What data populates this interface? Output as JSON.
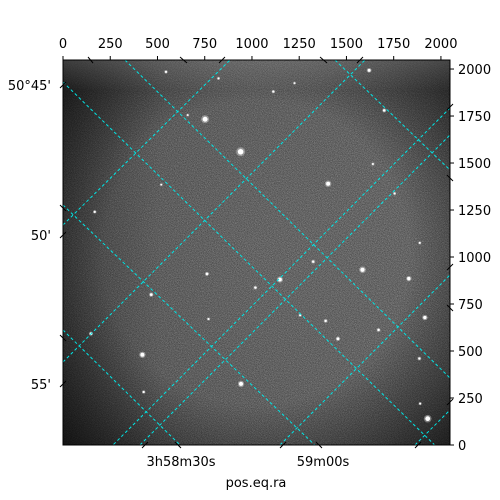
{
  "chart_data": {
    "type": "image",
    "title": "",
    "xlabel": "pos.eq.ra",
    "ylabel": "",
    "pixel_axes": {
      "x": {
        "range": [
          0,
          2048
        ],
        "ticks": [
          0,
          250,
          500,
          750,
          1000,
          1250,
          1500,
          1750,
          2000
        ],
        "tick_labels": [
          "0",
          "250",
          "500",
          "750",
          "1000",
          "1250",
          "1500",
          "1750",
          "2000"
        ],
        "position": "top"
      },
      "y": {
        "range": [
          0,
          2048
        ],
        "ticks": [
          0,
          250,
          500,
          750,
          1000,
          1250,
          1500,
          1750,
          2000
        ],
        "tick_labels": [
          "0",
          "250",
          "500",
          "750",
          "1000",
          "1250",
          "1500",
          "1750",
          "2000"
        ],
        "position": "right"
      }
    },
    "world_axes": {
      "ra": {
        "name": "pos.eq.ra",
        "tick_labels": [
          "3h58m30s",
          "59m00s"
        ],
        "position": "bottom"
      },
      "dec": {
        "tick_labels": [
          "50°45'",
          "50'",
          "55'"
        ],
        "position": "left"
      }
    },
    "grid": true,
    "grid_color": "#00e5e5",
    "image": {
      "colormap": "gray",
      "background_level": 0.38,
      "vignette": "dark corners with brighter central plate region",
      "stars": [
        {
          "x": 752,
          "y": 1733,
          "size": 2.5
        },
        {
          "x": 940,
          "y": 1560,
          "size": 2.8
        },
        {
          "x": 1403,
          "y": 1390,
          "size": 2.0
        },
        {
          "x": 1585,
          "y": 932,
          "size": 2.1
        },
        {
          "x": 1148,
          "y": 880,
          "size": 1.9
        },
        {
          "x": 1830,
          "y": 885,
          "size": 1.7
        },
        {
          "x": 1915,
          "y": 678,
          "size": 1.7
        },
        {
          "x": 420,
          "y": 480,
          "size": 2.0
        },
        {
          "x": 942,
          "y": 325,
          "size": 2.0
        },
        {
          "x": 1930,
          "y": 140,
          "size": 2.4
        },
        {
          "x": 1620,
          "y": 1993,
          "size": 1.5
        },
        {
          "x": 1700,
          "y": 1780,
          "size": 1.3
        },
        {
          "x": 1455,
          "y": 565,
          "size": 1.4
        },
        {
          "x": 1390,
          "y": 660,
          "size": 1.2
        },
        {
          "x": 762,
          "y": 910,
          "size": 1.3
        },
        {
          "x": 1018,
          "y": 837,
          "size": 1.2
        },
        {
          "x": 1324,
          "y": 975,
          "size": 1.2
        },
        {
          "x": 467,
          "y": 800,
          "size": 1.4
        },
        {
          "x": 148,
          "y": 592,
          "size": 1.3
        },
        {
          "x": 168,
          "y": 1240,
          "size": 1.1
        },
        {
          "x": 545,
          "y": 1985,
          "size": 1.1
        },
        {
          "x": 823,
          "y": 1950,
          "size": 1.0
        },
        {
          "x": 1113,
          "y": 1880,
          "size": 1.1
        },
        {
          "x": 1886,
          "y": 460,
          "size": 1.2
        },
        {
          "x": 427,
          "y": 282,
          "size": 1.1
        },
        {
          "x": 1670,
          "y": 612,
          "size": 1.2
        },
        {
          "x": 1640,
          "y": 1495,
          "size": 1.0
        },
        {
          "x": 1755,
          "y": 1338,
          "size": 1.0
        },
        {
          "x": 1225,
          "y": 1925,
          "size": 0.9
        },
        {
          "x": 520,
          "y": 1385,
          "size": 0.9
        },
        {
          "x": 770,
          "y": 670,
          "size": 1.0
        },
        {
          "x": 1255,
          "y": 690,
          "size": 1.0
        },
        {
          "x": 1888,
          "y": 1075,
          "size": 1.0
        },
        {
          "x": 660,
          "y": 1755,
          "size": 0.9
        },
        {
          "x": 1890,
          "y": 220,
          "size": 1.0
        }
      ]
    }
  }
}
